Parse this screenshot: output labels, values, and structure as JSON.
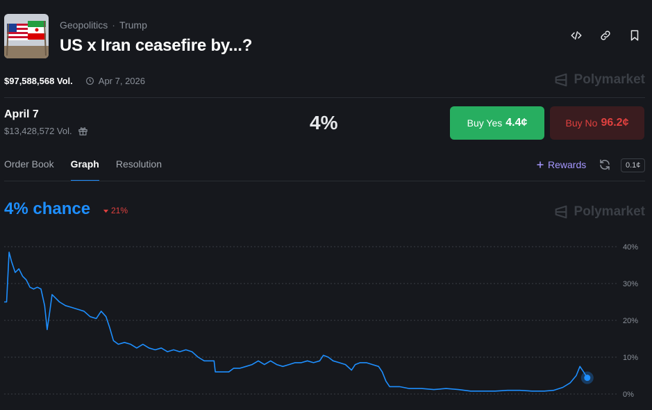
{
  "header": {
    "breadcrumbs": [
      "Geopolitics",
      "Trump"
    ],
    "breadcrumb_separator": "·",
    "title": "US x Iran ceasefire by...?",
    "thumbnail_icon": "us-iran-flags-image"
  },
  "meta": {
    "volume": "$97,588,568 Vol.",
    "end_date": "Apr 7, 2026"
  },
  "brand": {
    "name": "Polymarket"
  },
  "outcome": {
    "name": "April 7",
    "volume": "$13,428,572 Vol.",
    "percent": "4%",
    "buy_yes_label": "Buy Yes",
    "buy_yes_price": "4.4¢",
    "buy_no_label": "Buy No",
    "buy_no_price": "96.2¢"
  },
  "tabs": [
    {
      "label": "Order Book",
      "active": false
    },
    {
      "label": "Graph",
      "active": true
    },
    {
      "label": "Resolution",
      "active": false
    }
  ],
  "toolbar": {
    "rewards_label": "Rewards",
    "tick_size": "0.1¢"
  },
  "graph": {
    "chance_label": "4% chance",
    "change_label": "21%",
    "change_direction": "down"
  },
  "colors": {
    "line": "#1e8fff",
    "yes": "#27ae60",
    "no": "#e0413f",
    "accent": "#a597ff",
    "background": "#16181d"
  },
  "chart_data": {
    "type": "line",
    "y_ticks": [
      "40%",
      "30%",
      "20%",
      "10%",
      "0%"
    ],
    "y_tick_values": [
      40,
      30,
      20,
      10,
      0
    ],
    "ylim": [
      0,
      40
    ],
    "xlim": [
      0,
      100
    ],
    "grid": true,
    "series": [
      {
        "values": [
          [
            0,
            25
          ],
          [
            0.4,
            25
          ],
          [
            0.8,
            38.5
          ],
          [
            1.2,
            36
          ],
          [
            1.8,
            33
          ],
          [
            2.4,
            34
          ],
          [
            3,
            32
          ],
          [
            3.6,
            31
          ],
          [
            4.2,
            29
          ],
          [
            4.8,
            28.5
          ],
          [
            5.4,
            29
          ],
          [
            6,
            28.5
          ],
          [
            6.6,
            24
          ],
          [
            7,
            17.5
          ],
          [
            7.4,
            22
          ],
          [
            7.8,
            27
          ],
          [
            8.4,
            26
          ],
          [
            9,
            25
          ],
          [
            10,
            24
          ],
          [
            11,
            23.5
          ],
          [
            12,
            23
          ],
          [
            13,
            22.5
          ],
          [
            14,
            21
          ],
          [
            15,
            20.5
          ],
          [
            15.8,
            22.5
          ],
          [
            16.6,
            21
          ],
          [
            17.2,
            18
          ],
          [
            17.8,
            14.5
          ],
          [
            18.6,
            13.5
          ],
          [
            19.6,
            14
          ],
          [
            20.6,
            13.5
          ],
          [
            21.6,
            12.5
          ],
          [
            22.6,
            13.5
          ],
          [
            23.6,
            12.5
          ],
          [
            24.6,
            12
          ],
          [
            25.6,
            12.5
          ],
          [
            26.6,
            11.5
          ],
          [
            27.6,
            12
          ],
          [
            28.6,
            11.5
          ],
          [
            29.6,
            12
          ],
          [
            30.6,
            11.5
          ],
          [
            31.6,
            10
          ],
          [
            32.6,
            9
          ],
          [
            33.6,
            9
          ],
          [
            34.2,
            9
          ],
          [
            34.4,
            6
          ],
          [
            35.6,
            6
          ],
          [
            36.6,
            6
          ],
          [
            37.4,
            7
          ],
          [
            38.4,
            7
          ],
          [
            39.4,
            7.5
          ],
          [
            40.4,
            8
          ],
          [
            41.4,
            9
          ],
          [
            42.4,
            8
          ],
          [
            43.4,
            9
          ],
          [
            44.4,
            8
          ],
          [
            45.4,
            7.5
          ],
          [
            46.4,
            8
          ],
          [
            47.4,
            8.5
          ],
          [
            48.4,
            8.5
          ],
          [
            49.4,
            9
          ],
          [
            50.4,
            8.5
          ],
          [
            51.4,
            9
          ],
          [
            52,
            10.5
          ],
          [
            52.8,
            10
          ],
          [
            53.6,
            9
          ],
          [
            54.6,
            8.5
          ],
          [
            55.6,
            8
          ],
          [
            56.6,
            6.5
          ],
          [
            57.2,
            8
          ],
          [
            58,
            8.5
          ],
          [
            59,
            8.5
          ],
          [
            60,
            8
          ],
          [
            61,
            7.5
          ],
          [
            61.6,
            6
          ],
          [
            62.2,
            3.5
          ],
          [
            62.8,
            2
          ],
          [
            63.4,
            2
          ],
          [
            64.4,
            2
          ],
          [
            66,
            1.5
          ],
          [
            68,
            1.5
          ],
          [
            70,
            1.2
          ],
          [
            72,
            1.5
          ],
          [
            74,
            1.2
          ],
          [
            76,
            0.8
          ],
          [
            78,
            0.8
          ],
          [
            80,
            0.8
          ],
          [
            82,
            1
          ],
          [
            84,
            1
          ],
          [
            86,
            0.8
          ],
          [
            88,
            0.8
          ],
          [
            89.5,
            1
          ],
          [
            91,
            1.8
          ],
          [
            92.2,
            3
          ],
          [
            93.2,
            5
          ],
          [
            93.8,
            7.5
          ],
          [
            94.4,
            6
          ],
          [
            95,
            4.4
          ]
        ]
      }
    ]
  }
}
